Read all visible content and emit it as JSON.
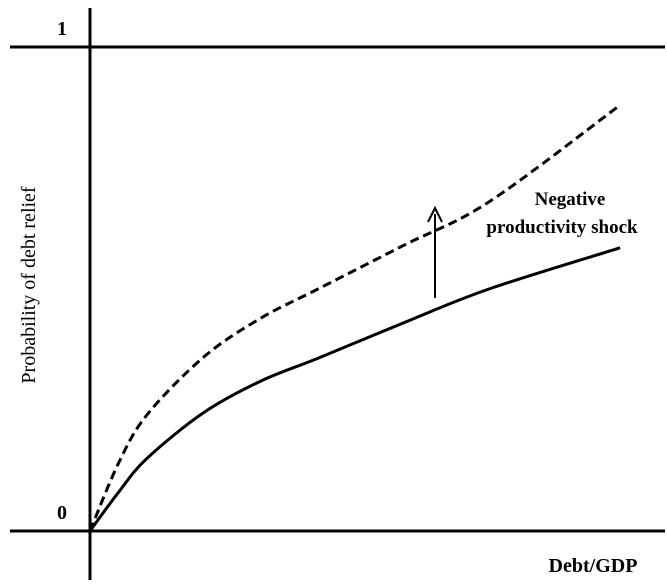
{
  "chart_data": {
    "type": "line",
    "y_label": "Probability of debt relief",
    "x_label": "Debt/GDP",
    "annotation": [
      "Negative",
      "productivity shock"
    ],
    "x": [
      0,
      0.05,
      0.1,
      0.2,
      0.3,
      0.4,
      0.55,
      0.7,
      0.93
    ],
    "series": [
      {
        "color": "#000000",
        "dashed": false,
        "values": [
          0,
          0.08,
          0.15,
          0.245,
          0.31,
          0.357,
          0.43,
          0.5,
          0.585
        ]
      },
      {
        "color": "#000000",
        "dashed": true,
        "values": [
          0,
          0.14,
          0.24,
          0.36,
          0.44,
          0.5,
          0.59,
          0.68,
          0.88
        ]
      }
    ],
    "xlim": [
      0,
      1
    ],
    "ylim": [
      0,
      1
    ],
    "yticks": [
      0,
      1
    ],
    "grid": true
  }
}
